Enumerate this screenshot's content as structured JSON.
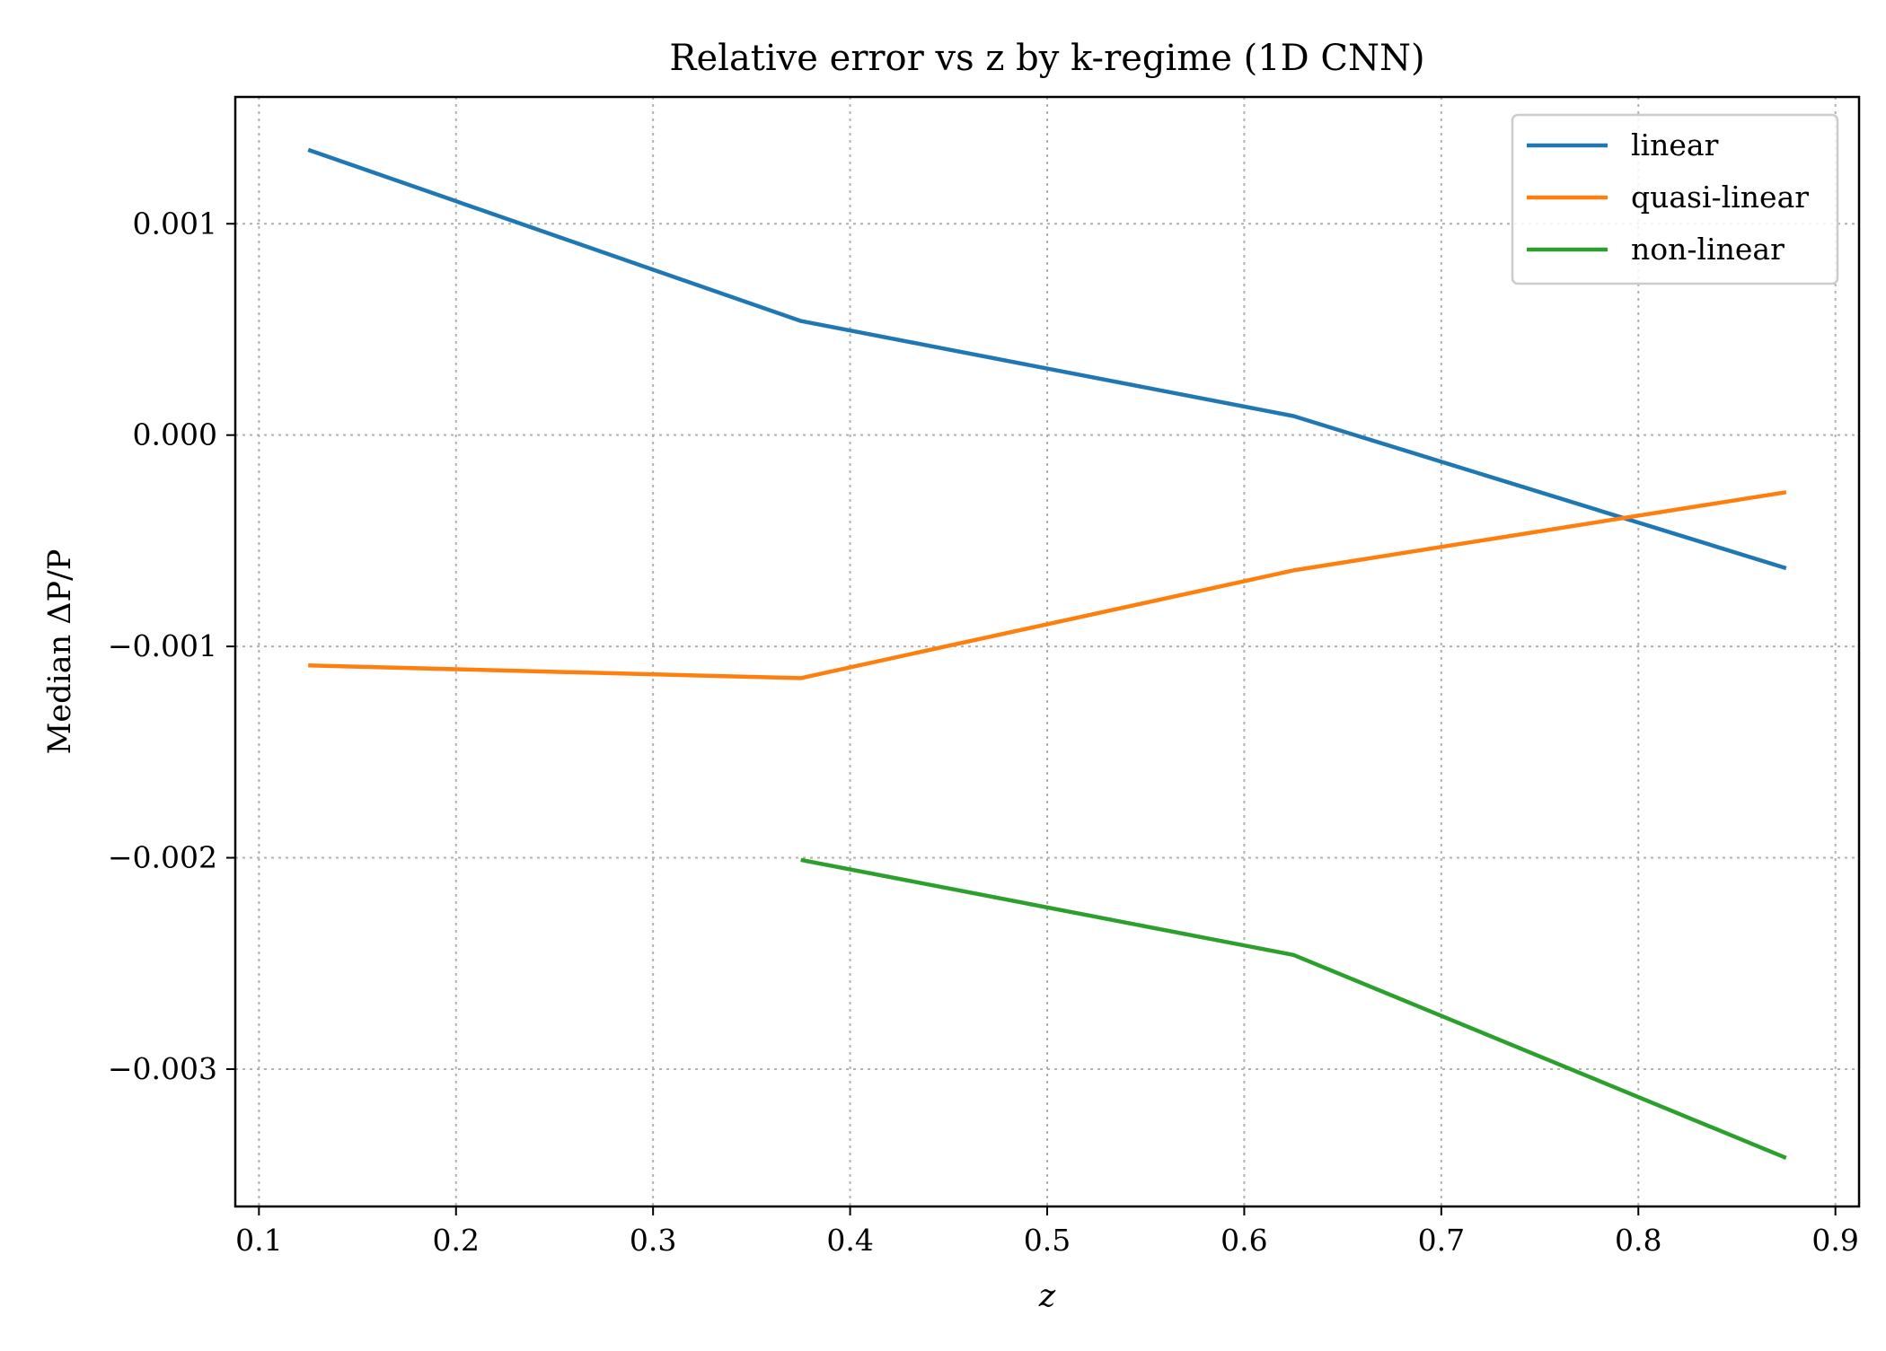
{
  "chart_data": {
    "type": "line",
    "title": "Relative error vs z by k-regime (1D CNN)",
    "xlabel": "z",
    "ylabel": "Median ΔP/P",
    "xlim": [
      0.088,
      0.912
    ],
    "ylim": [
      -0.00365,
      0.0016
    ],
    "x_ticks": [
      0.1,
      0.2,
      0.3,
      0.4,
      0.5,
      0.6,
      0.7,
      0.8,
      0.9
    ],
    "x_tick_labels": [
      "0.1",
      "0.2",
      "0.3",
      "0.4",
      "0.5",
      "0.6",
      "0.7",
      "0.8",
      "0.9"
    ],
    "y_ticks": [
      0.001,
      0.0,
      -0.001,
      -0.002,
      -0.003
    ],
    "y_tick_labels": [
      "0.001",
      "0.000",
      "−0.001",
      "−0.002",
      "−0.003"
    ],
    "grid": true,
    "legend_position": "top-right",
    "series": [
      {
        "name": "linear",
        "color": "#1f77b4",
        "x": [
          0.125,
          0.375,
          0.625,
          0.875
        ],
        "y": [
          0.00135,
          0.00054,
          9e-05,
          -0.00063
        ]
      },
      {
        "name": "quasi-linear",
        "color": "#ff7f0e",
        "x": [
          0.125,
          0.375,
          0.625,
          0.875
        ],
        "y": [
          -0.00109,
          -0.00115,
          -0.00064,
          -0.00027
        ]
      },
      {
        "name": "non-linear",
        "color": "#2ca02c",
        "x": [
          0.375,
          0.625,
          0.875
        ],
        "y": [
          -0.00201,
          -0.00246,
          -0.00342
        ]
      }
    ]
  }
}
